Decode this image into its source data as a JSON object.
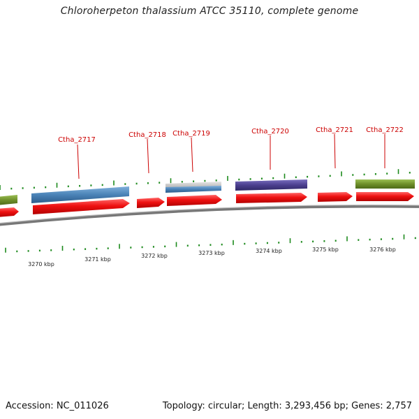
{
  "title": "Chloroherpeton thalassium ATCC 35110, complete genome",
  "footer": {
    "accession": "Accession: NC_011026",
    "summary": "Topology: circular; Length: 3,293,456 bp; Genes: 2,757"
  },
  "colors": {
    "forward_cds": "#ee1111",
    "blue_feature": "#4a82b6",
    "purple_feature": "#4b3f8f",
    "green_feature": "#6e8f2a",
    "grey_feature": "#bbbbbb",
    "backbone": "#777777",
    "tick": "#1d8a1d",
    "gene_label": "#cc0000"
  },
  "genes": [
    "Ctha_2717",
    "Ctha_2718",
    "Ctha_2719",
    "Ctha_2720",
    "Ctha_2721",
    "Ctha_2722"
  ],
  "kbp_ticks": [
    "3270 kbp",
    "3271 kbp",
    "3272 kbp",
    "3273 kbp",
    "3274 kbp",
    "3275 kbp",
    "3276 kbp"
  ]
}
